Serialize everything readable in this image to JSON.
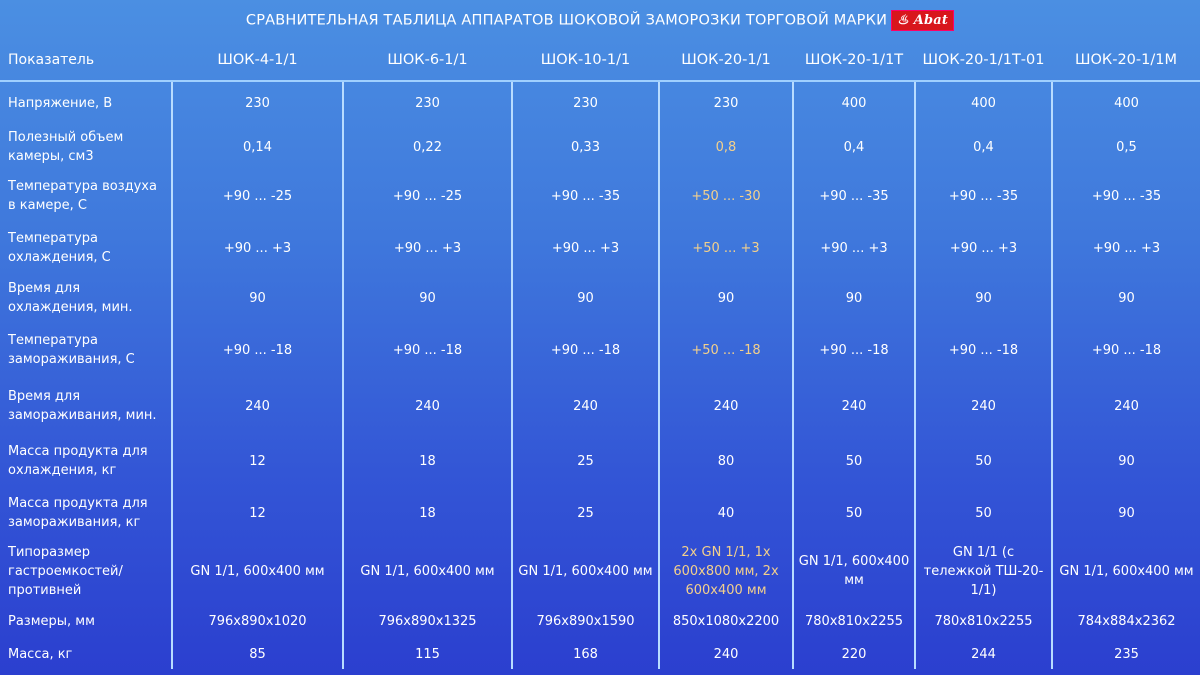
{
  "title": "СРАВНИТЕЛЬНАЯ ТАБЛИЦА АППАРАТОВ ШОКОВОЙ ЗАМОРОЗКИ ТОРГОВОЙ МАРКИ",
  "logo_text": "Abat",
  "colors": {
    "highlight": "#f3d08c",
    "logo": "#d8161c"
  },
  "header": [
    "Показатель",
    "ШОК-4-1/1",
    "ШОК-6-1/1",
    "ШОК-10-1/1",
    "ШОК-20-1/1",
    "ШОК-20-1/1Т",
    "ШОК-20-1/1Т-01",
    "ШОК-20-1/1М"
  ],
  "rows": [
    {
      "label": "Напряжение, В",
      "values": [
        "230",
        "230",
        "230",
        "230",
        "400",
        "400",
        "400"
      ]
    },
    {
      "label": "Полезный объем камеры, см3",
      "values": [
        "0,14",
        "0,22",
        "0,33",
        "0,8",
        "0,4",
        "0,4",
        "0,5"
      ]
    },
    {
      "label": "Температура воздуха в камере, С",
      "values": [
        "+90 ... -25",
        "+90 ... -25",
        "+90 ... -35",
        "+50 ... -30",
        "+90 ... -35",
        "+90 ... -35",
        "+90 ... -35"
      ]
    },
    {
      "label": "Температура охлаждения, С",
      "values": [
        "+90 ... +3",
        "+90 ... +3",
        "+90 ... +3",
        "+50 ... +3",
        "+90 ... +3",
        "+90 ... +3",
        "+90 ... +3"
      ]
    },
    {
      "label": "Время для охлаждения, мин.",
      "values": [
        "90",
        "90",
        "90",
        "90",
        "90",
        "90",
        "90"
      ]
    },
    {
      "label": "Температура замораживания, С",
      "values": [
        "+90 ... -18",
        "+90 ... -18",
        "+90 ... -18",
        "+50 ... -18",
        "+90 ... -18",
        "+90 ... -18",
        "+90 ... -18"
      ]
    },
    {
      "label": "Время для замораживания, мин.",
      "values": [
        "240",
        "240",
        "240",
        "240",
        "240",
        "240",
        "240"
      ]
    },
    {
      "label": "Масса продукта для охлаждения, кг",
      "values": [
        "12",
        "18",
        "25",
        "80",
        "50",
        "50",
        "90"
      ]
    },
    {
      "label": "Масса продукта для замораживания, кг",
      "values": [
        "12",
        "18",
        "25",
        "40",
        "50",
        "50",
        "90"
      ]
    },
    {
      "label": "Типоразмер гастроемкостей/ противней",
      "values": [
        "GN 1/1, 600x400 мм",
        "GN 1/1, 600x400 мм",
        "GN 1/1, 600x400 мм",
        "2x GN 1/1, 1x 600x800 мм, 2x 600x400 мм",
        "GN 1/1, 600x400 мм",
        "GN 1/1 (с тележкой ТШ-20-1/1)",
        "GN 1/1, 600x400 мм"
      ]
    },
    {
      "label": "Размеры, мм",
      "values": [
        "796x890x1020",
        "796x890x1325",
        "796x890x1590",
        "850x1080x2200",
        "780x810x2255",
        "780x810x2255",
        "784x884x2362"
      ]
    },
    {
      "label": "Масса, кг",
      "values": [
        "85",
        "115",
        "168",
        "240",
        "220",
        "244",
        "235"
      ]
    }
  ],
  "highlighted_rows_col4": [
    1,
    2,
    3,
    5,
    9
  ]
}
